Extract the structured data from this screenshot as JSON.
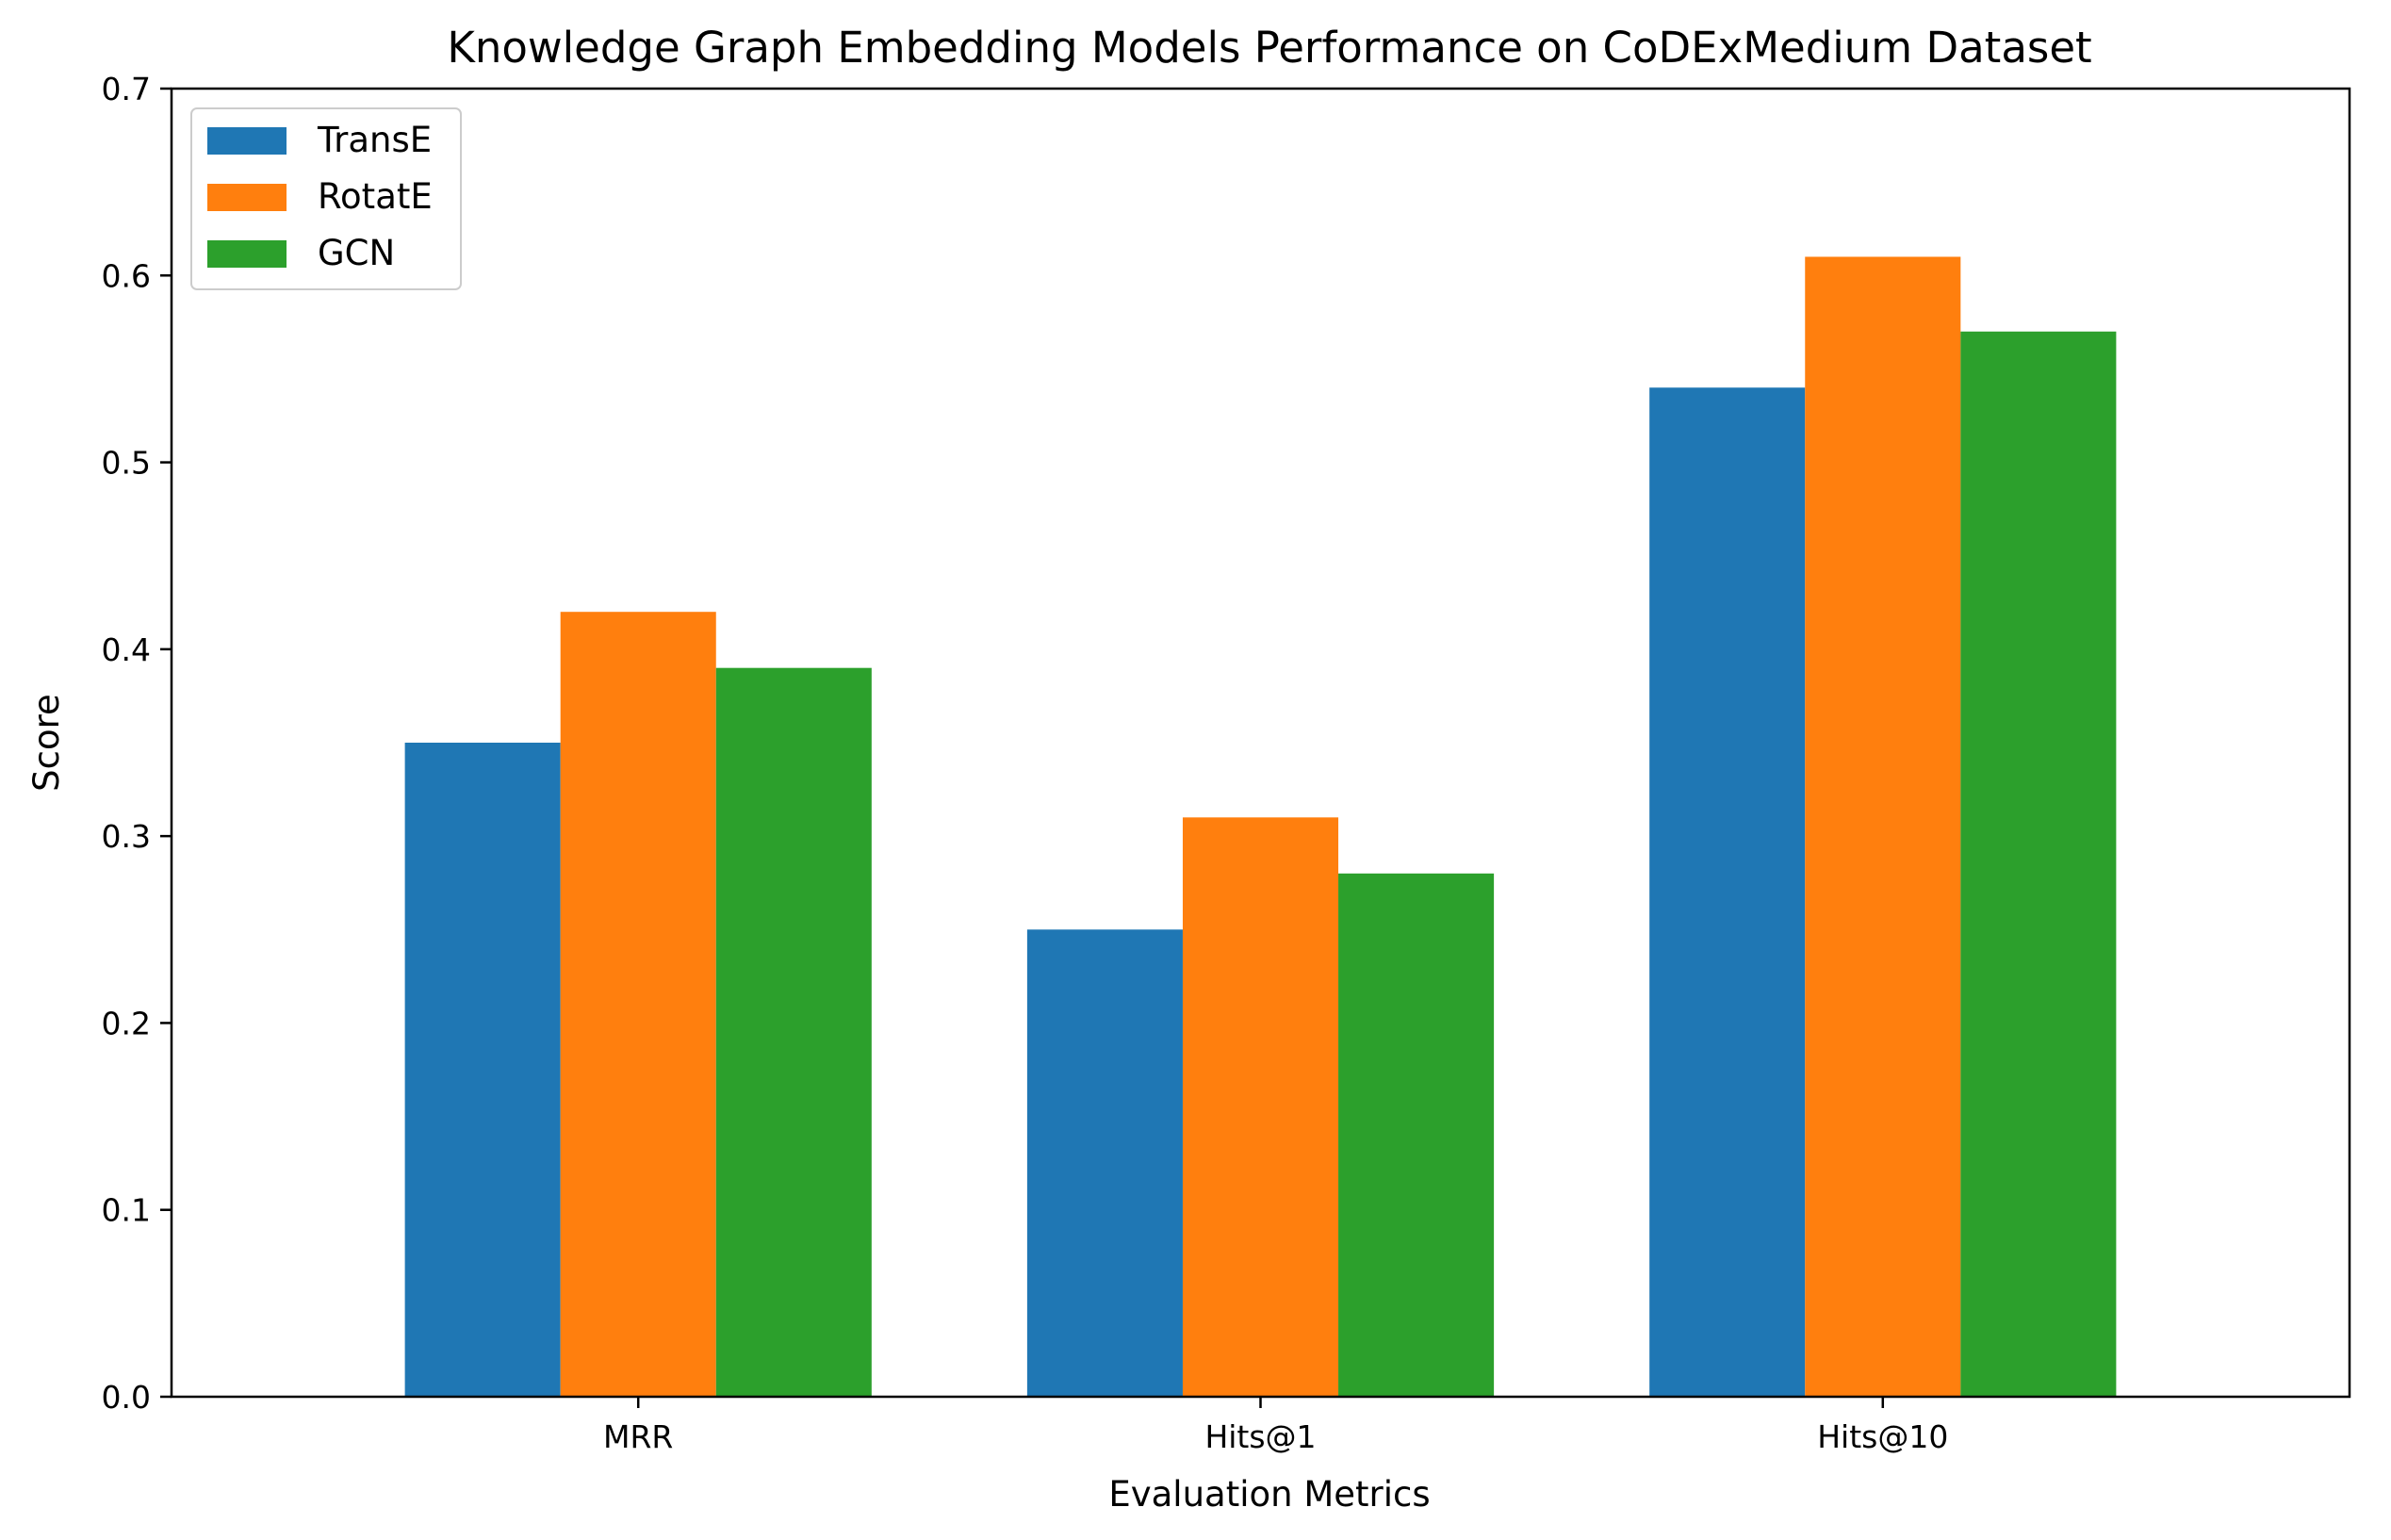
{
  "chart_data": {
    "type": "bar",
    "title": "Knowledge Graph Embedding Models Performance on CoDExMedium Dataset",
    "xlabel": "Evaluation Metrics",
    "ylabel": "Score",
    "categories": [
      "MRR",
      "Hits@1",
      "Hits@10"
    ],
    "series": [
      {
        "name": "TransE",
        "values": [
          0.35,
          0.25,
          0.54
        ],
        "color": "#1f77b4"
      },
      {
        "name": "RotatE",
        "values": [
          0.42,
          0.31,
          0.61
        ],
        "color": "#ff7f0e"
      },
      {
        "name": "GCN",
        "values": [
          0.39,
          0.28,
          0.57
        ],
        "color": "#2ca02c"
      }
    ],
    "ylim": [
      0,
      0.7
    ],
    "yticks": [
      "0.0",
      "0.1",
      "0.2",
      "0.3",
      "0.4",
      "0.5",
      "0.6",
      "0.7"
    ],
    "grid": false,
    "legend_position": "upper-left"
  }
}
